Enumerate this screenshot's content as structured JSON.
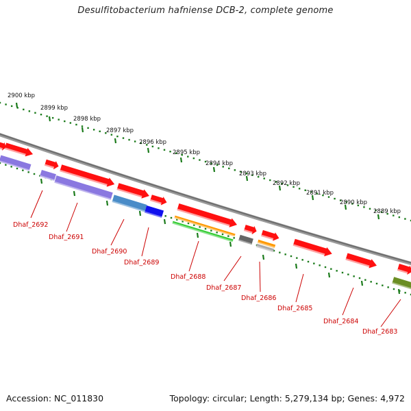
{
  "title": "Desulfitobacterium hafniense DCB-2, complete genome",
  "footer": {
    "accession": "Accession: NC_011830",
    "topology": "Topology: circular; Length: 5,279,134 bp; Genes: 4,972"
  },
  "kbp_ticks": [
    "2900 kbp",
    "2899 kbp",
    "2898 kbp",
    "2897 kbp",
    "2896 kbp",
    "2895 kbp",
    "2894 kbp",
    "2893 kbp",
    "2892 kbp",
    "2891 kbp",
    "2890 kbp",
    "2889 kbp"
  ],
  "gene_labels": [
    "Dhaf_2692",
    "Dhaf_2691",
    "Dhaf_2690",
    "Dhaf_2689",
    "Dhaf_2688",
    "Dhaf_2687",
    "Dhaf_2686",
    "Dhaf_2685",
    "Dhaf_2684",
    "Dhaf_2683"
  ],
  "colors": {
    "backbone": "#808080",
    "dots": "#1a7a1a",
    "forward_gene": "#ff1010",
    "label": "#cc0000",
    "purple": "#8a78e0",
    "steel_blue": "#4a8cc8",
    "blue": "#1010ee",
    "orange": "#ff9900",
    "green": "#33cc33",
    "gray": "#666666",
    "olive": "#6b8e23"
  }
}
